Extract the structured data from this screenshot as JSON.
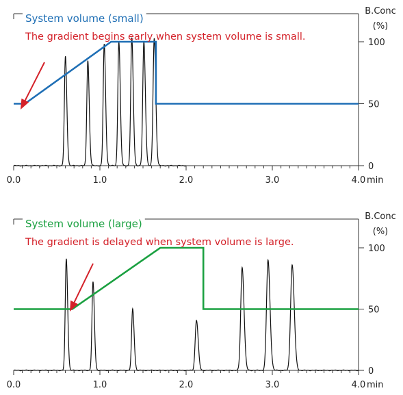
{
  "chart_data": [
    {
      "type": "line",
      "title": "System volume (small)",
      "title_color": "#1f6fb5",
      "annotation": "The gradient begins early when system volume is small.",
      "annotation_color": "#d4222a",
      "xlabel": "min",
      "ylabel_right": "B.Conc",
      "ylabel_right_unit": "(%)",
      "xlim": [
        0,
        4.0
      ],
      "ylim": [
        0,
        100
      ],
      "x_ticks": [
        "0.0",
        "1.0",
        "2.0",
        "3.0",
        "4.0"
      ],
      "y_ticks": [
        "0",
        "50",
        "100"
      ],
      "series": [
        {
          "role": "gradient",
          "color": "#1f6fb5",
          "x": [
            0.0,
            0.13,
            1.13,
            1.65,
            1.65,
            4.0
          ],
          "y": [
            50,
            50,
            100,
            100,
            50,
            50
          ]
        },
        {
          "role": "chromatogram",
          "color": "#111111",
          "baseline": 0,
          "end_x": 2.0,
          "peaks": [
            {
              "rt": 0.6,
              "height": 88
            },
            {
              "rt": 0.86,
              "height": 85
            },
            {
              "rt": 1.05,
              "height": 98
            },
            {
              "rt": 1.22,
              "height": 100
            },
            {
              "rt": 1.37,
              "height": 103
            },
            {
              "rt": 1.51,
              "height": 100
            },
            {
              "rt": 1.63,
              "height": 103
            }
          ]
        }
      ]
    },
    {
      "type": "line",
      "title": "System volume (large)",
      "title_color": "#1aa040",
      "annotation": "The gradient is delayed when system volume is large.",
      "annotation_color": "#d4222a",
      "xlabel": "min",
      "ylabel_right": "B.Conc",
      "ylabel_right_unit": "(%)",
      "xlim": [
        0,
        4.0
      ],
      "ylim": [
        0,
        100
      ],
      "x_ticks": [
        "0.0",
        "1.0",
        "2.0",
        "3.0",
        "4.0"
      ],
      "y_ticks": [
        "0",
        "50",
        "100"
      ],
      "series": [
        {
          "role": "gradient",
          "color": "#1aa040",
          "x": [
            0.0,
            0.68,
            1.7,
            2.2,
            2.2,
            4.0
          ],
          "y": [
            50,
            50,
            100,
            100,
            50,
            50
          ]
        },
        {
          "role": "chromatogram",
          "color": "#111111",
          "baseline": 0,
          "end_x": 4.0,
          "peaks": [
            {
              "rt": 0.61,
              "height": 91
            },
            {
              "rt": 0.92,
              "height": 72
            },
            {
              "rt": 1.38,
              "height": 50
            },
            {
              "rt": 2.12,
              "height": 41
            },
            {
              "rt": 2.65,
              "height": 84
            },
            {
              "rt": 2.95,
              "height": 90
            },
            {
              "rt": 3.23,
              "height": 86
            }
          ]
        }
      ]
    }
  ]
}
